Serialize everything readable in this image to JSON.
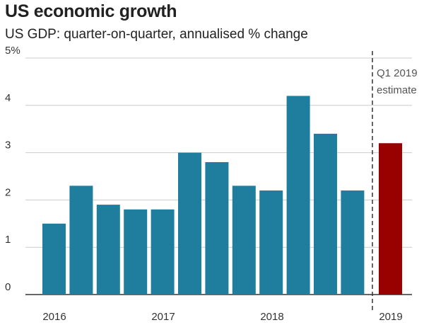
{
  "title": "US economic growth",
  "subtitle": "US GDP: quarter-on-quarter, annualised % change",
  "chart_data": {
    "type": "bar",
    "x": [
      "2016 Q1",
      "2016 Q2",
      "2016 Q3",
      "2016 Q4",
      "2017 Q1",
      "2017 Q2",
      "2017 Q3",
      "2017 Q4",
      "2018 Q1",
      "2018 Q2",
      "2018 Q3",
      "2018 Q4",
      "2019 Q1"
    ],
    "values": [
      1.5,
      2.3,
      1.9,
      1.8,
      1.8,
      3.0,
      2.8,
      2.3,
      2.2,
      4.2,
      3.4,
      2.2,
      3.2
    ],
    "highlight_index": 12,
    "colors": {
      "bar": "#1f7e9e",
      "highlight": "#990000",
      "grid": "#cccccc",
      "axis": "#333333"
    },
    "ylim": [
      0,
      5
    ],
    "y_ticks": [
      0,
      1,
      2,
      3,
      4,
      5
    ],
    "y_tick_labels": [
      "0",
      "1",
      "2",
      "3",
      "4",
      "5%"
    ],
    "x_tick_labels": [
      "2016",
      "2017",
      "2018",
      "2019"
    ],
    "annotation": [
      "Q1 2019",
      "estimate"
    ],
    "grid": true
  }
}
